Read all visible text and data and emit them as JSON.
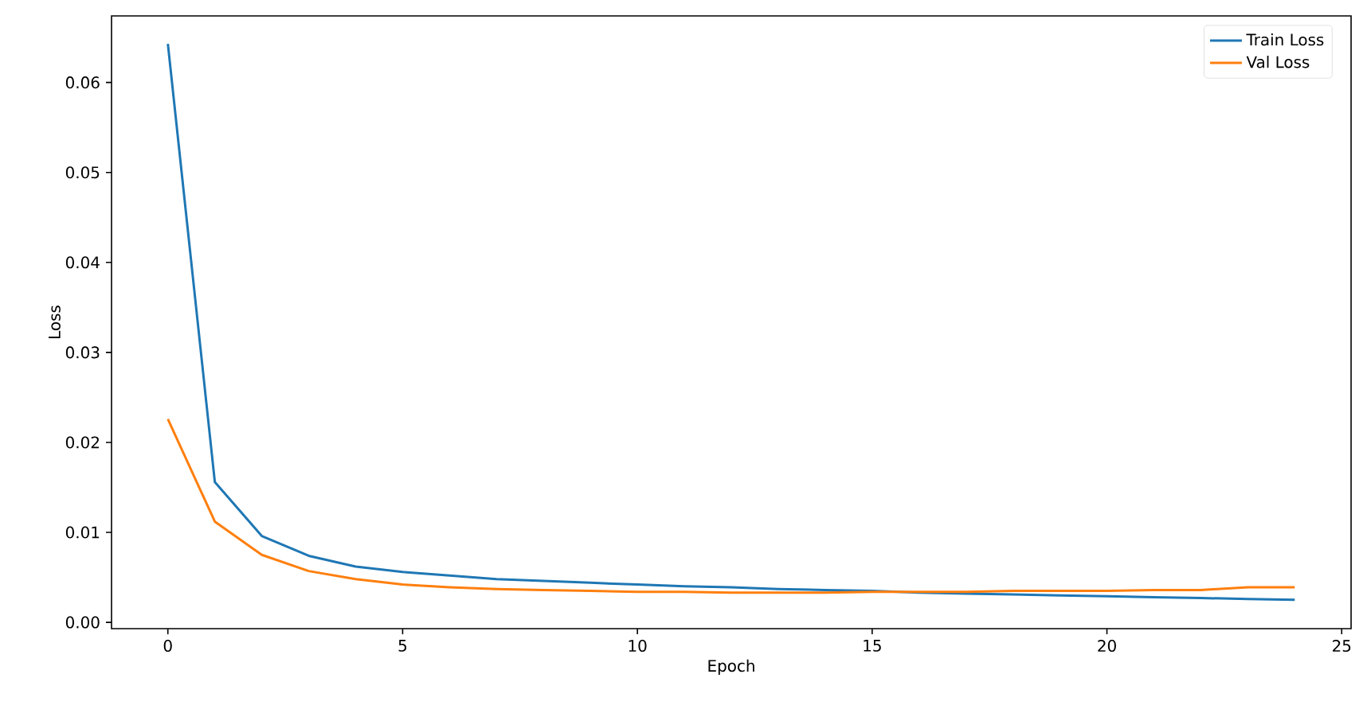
{
  "chart_data": {
    "type": "line",
    "xlabel": "Epoch",
    "ylabel": "Loss",
    "x": [
      0,
      1,
      2,
      3,
      4,
      5,
      6,
      7,
      8,
      9,
      10,
      11,
      12,
      13,
      14,
      15,
      16,
      17,
      18,
      19,
      20,
      21,
      22,
      23,
      24
    ],
    "series": [
      {
        "name": "Train Loss",
        "color": "#1f77b4",
        "values": [
          0.0643,
          0.0156,
          0.0096,
          0.0074,
          0.0062,
          0.0056,
          0.0052,
          0.0048,
          0.0046,
          0.0044,
          0.0042,
          0.004,
          0.0039,
          0.0037,
          0.0036,
          0.0035,
          0.0033,
          0.0032,
          0.0031,
          0.003,
          0.0029,
          0.0028,
          0.0027,
          0.0026,
          0.0025
        ]
      },
      {
        "name": "Val Loss",
        "color": "#ff7f0e",
        "values": [
          0.0226,
          0.0112,
          0.0075,
          0.0057,
          0.0048,
          0.0042,
          0.0039,
          0.0037,
          0.0036,
          0.0035,
          0.0034,
          0.0034,
          0.0033,
          0.0033,
          0.0033,
          0.0034,
          0.0034,
          0.0034,
          0.0035,
          0.0035,
          0.0035,
          0.0036,
          0.0036,
          0.0039,
          0.0039
        ]
      }
    ],
    "xlim": [
      -1.2,
      25.2
    ],
    "ylim": [
      -0.0007,
      0.0674
    ],
    "xticks": [
      0,
      5,
      10,
      15,
      20,
      25
    ],
    "yticks": [
      {
        "value": 0,
        "label": "0.00"
      },
      {
        "value": 0.01,
        "label": "0.01"
      },
      {
        "value": 0.02,
        "label": "0.02"
      },
      {
        "value": 0.03,
        "label": "0.03"
      },
      {
        "value": 0.04,
        "label": "0.04"
      },
      {
        "value": 0.05,
        "label": "0.05"
      },
      {
        "value": 0.06,
        "label": "0.06"
      }
    ],
    "legend": "top right",
    "grid": false,
    "marker": "none",
    "line_style": "solid"
  }
}
